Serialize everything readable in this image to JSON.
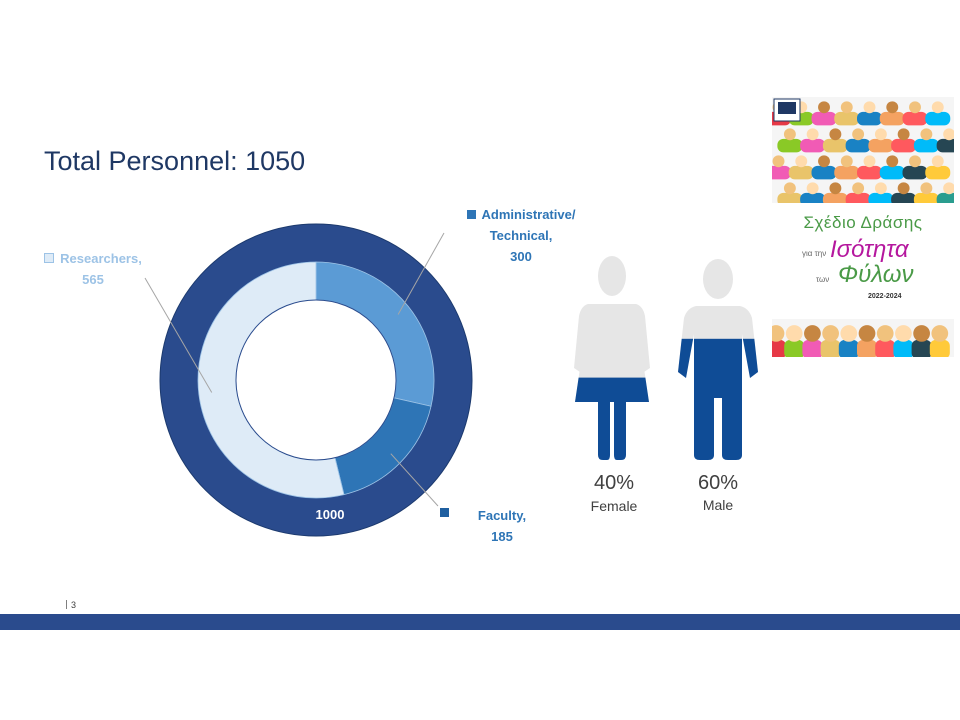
{
  "title": "Total Personnel: 1050",
  "chart_data": [
    {
      "type": "pie",
      "subtype": "doughnut",
      "inner_ring": {
        "slices": [
          {
            "label": "Administrative/ Technical",
            "value": 300,
            "color": "#5b9bd5"
          },
          {
            "label": "Faculty",
            "value": 185,
            "color": "#2e75b6"
          },
          {
            "label": "Researchers",
            "value": 565,
            "color": "#deebf7"
          }
        ]
      },
      "outer_ring": {
        "slices": [
          {
            "label": "1000",
            "value": 1000,
            "color": "#2a4b8d"
          }
        ]
      },
      "labels": {
        "admin_line1": "Administrative/",
        "admin_line2": "Technical,",
        "admin_value": "300",
        "res_line1": "Researchers,",
        "res_value": "565",
        "fac_line1": "Faculty,",
        "fac_value": "185",
        "outer_value": "1000"
      }
    },
    {
      "type": "bar",
      "subtype": "pictograph",
      "categories": [
        "Female",
        "Male"
      ],
      "values": [
        40,
        60
      ],
      "value_labels": [
        "40%",
        "60%"
      ],
      "fill_color": "#0f4c96",
      "empty_color": "#e6e6e6"
    }
  ],
  "page_number": "3",
  "logo": {
    "title": "Σχέδιο Δράσης",
    "small1": "για την",
    "big1": "Ισότητα",
    "small2": "των",
    "big2": "Φύλων",
    "years": "2022-2024"
  }
}
